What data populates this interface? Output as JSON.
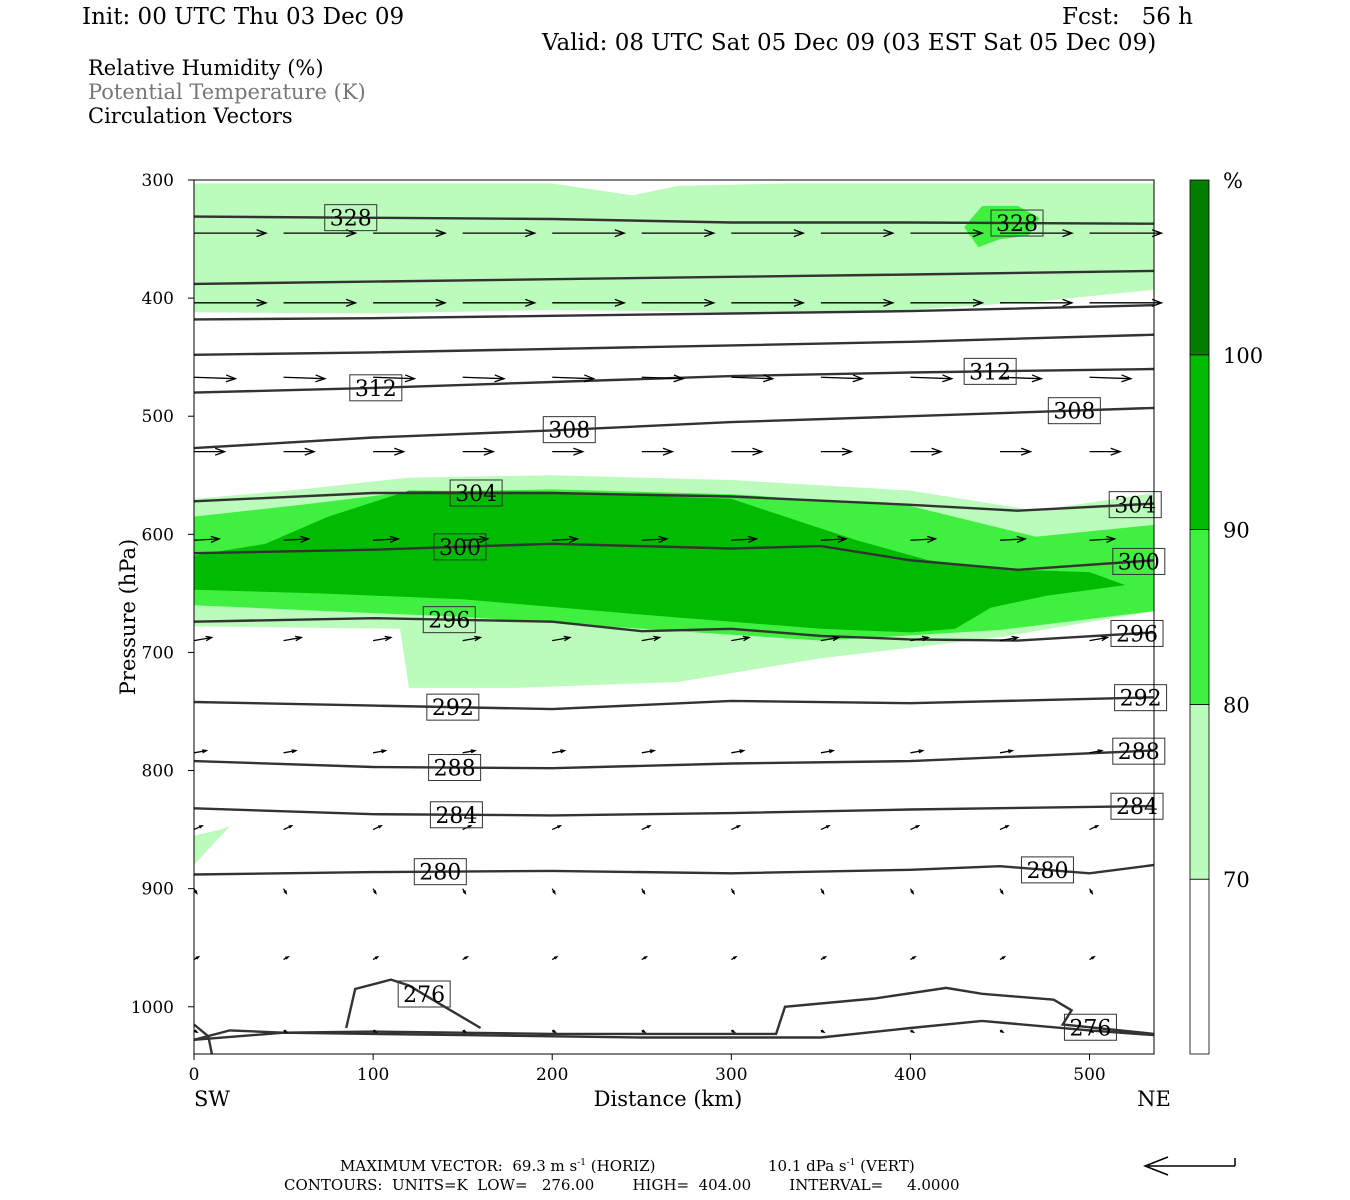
{
  "header": {
    "init": "Init: 00 UTC Thu 03 Dec 09",
    "fcst": "Fcst:   56 h",
    "valid": "Valid: 08 UTC Sat 05 Dec 09 (03 EST Sat 05 Dec 09)"
  },
  "legend": {
    "rh": "Relative Humidity (%)",
    "theta": "Potential Temperature (K)",
    "vectors": "Circulation Vectors"
  },
  "footer": {
    "max_vector": "MAXIMUM VECTOR:  69.3 m s",
    "max_vector_unit_sup": "-1",
    "max_vector_horiz": " (HORIZ)",
    "vert_value": "10.1 dPa s",
    "vert_sup": "-1",
    "vert_label": " (VERT)",
    "contours": "CONTOURS:  UNITS=K  LOW=   276.00        HIGH=  404.00        INTERVAL=     4.0000"
  },
  "colors": {
    "rh70": "#bbfbbb",
    "rh80": "#40f040",
    "rh90": "#00bb00",
    "rh100": "#007f00",
    "contour": "#333333"
  },
  "chart_data": {
    "type": "cross-section",
    "xlabel": "Distance (km)",
    "ylabel": "Pressure (hPa)",
    "x_left_label": "SW",
    "x_right_label": "NE",
    "xlim": [
      0,
      536
    ],
    "ylim": [
      1040,
      300
    ],
    "xticks": [
      0,
      100,
      200,
      300,
      400,
      500
    ],
    "yticks": [
      300,
      400,
      500,
      600,
      700,
      800,
      900,
      1000
    ],
    "colorbar": {
      "unit": "%",
      "levels": [
        70,
        80,
        90,
        100
      ],
      "colors": [
        "#ffffff",
        "#bbfbbb",
        "#40f040",
        "#00bb00",
        "#007f00"
      ]
    },
    "rh_fill": [
      {
        "level": 70,
        "pts": [
          [
            0,
            303
          ],
          [
            120,
            303
          ],
          [
            200,
            303
          ],
          [
            245,
            313
          ],
          [
            270,
            305
          ],
          [
            330,
            303
          ],
          [
            400,
            303
          ],
          [
            450,
            303
          ],
          [
            536,
            303
          ],
          [
            536,
            393
          ],
          [
            470,
            403
          ],
          [
            400,
            410
          ],
          [
            300,
            412
          ],
          [
            200,
            410
          ],
          [
            100,
            413
          ],
          [
            0,
            412
          ]
        ]
      },
      {
        "level": 80,
        "pts": [
          [
            430,
            340
          ],
          [
            440,
            322
          ],
          [
            460,
            322
          ],
          [
            472,
            332
          ],
          [
            466,
            347
          ],
          [
            450,
            350
          ],
          [
            438,
            357
          ]
        ]
      },
      {
        "level": 70,
        "pts": [
          [
            0,
            570
          ],
          [
            60,
            562
          ],
          [
            120,
            552
          ],
          [
            200,
            550
          ],
          [
            300,
            554
          ],
          [
            400,
            563
          ],
          [
            470,
            580
          ],
          [
            536,
            565
          ],
          [
            536,
            665
          ],
          [
            450,
            687
          ],
          [
            350,
            705
          ],
          [
            270,
            725
          ],
          [
            180,
            730
          ],
          [
            120,
            730
          ],
          [
            115,
            680
          ],
          [
            0,
            678
          ]
        ]
      },
      {
        "level": 80,
        "pts": [
          [
            0,
            585
          ],
          [
            60,
            575
          ],
          [
            120,
            564
          ],
          [
            200,
            562
          ],
          [
            300,
            566
          ],
          [
            400,
            576
          ],
          [
            470,
            602
          ],
          [
            536,
            592
          ],
          [
            536,
            665
          ],
          [
            450,
            681
          ],
          [
            350,
            690
          ],
          [
            250,
            680
          ],
          [
            150,
            670
          ],
          [
            0,
            660
          ]
        ]
      },
      {
        "level": 90,
        "pts": [
          [
            0,
            618
          ],
          [
            40,
            608
          ],
          [
            75,
            585
          ],
          [
            120,
            563
          ],
          [
            200,
            564
          ],
          [
            300,
            570
          ],
          [
            330,
            585
          ],
          [
            370,
            605
          ],
          [
            410,
            622
          ],
          [
            460,
            630
          ],
          [
            500,
            632
          ],
          [
            520,
            643
          ],
          [
            476,
            652
          ],
          [
            445,
            662
          ],
          [
            425,
            680
          ],
          [
            400,
            683
          ],
          [
            350,
            680
          ],
          [
            250,
            668
          ],
          [
            150,
            655
          ],
          [
            70,
            650
          ],
          [
            0,
            647
          ]
        ]
      },
      {
        "level": 70,
        "pts": [
          [
            0,
            855
          ],
          [
            15,
            850
          ],
          [
            20,
            847
          ],
          [
            0,
            880
          ]
        ]
      }
    ],
    "theta_contours": [
      {
        "level": 328,
        "label_x": 73,
        "pts": [
          [
            0,
            331
          ],
          [
            100,
            332
          ],
          [
            200,
            333
          ],
          [
            300,
            336
          ],
          [
            400,
            336
          ],
          [
            536,
            337
          ]
        ]
      },
      {
        "level": 328,
        "label_x": 445,
        "pts": []
      },
      {
        "pts": [
          [
            0,
            388
          ],
          [
            100,
            386
          ],
          [
            200,
            384
          ],
          [
            300,
            382
          ],
          [
            400,
            380
          ],
          [
            536,
            377
          ]
        ]
      },
      {
        "pts": [
          [
            0,
            418
          ],
          [
            100,
            417
          ],
          [
            200,
            415
          ],
          [
            300,
            413
          ],
          [
            400,
            411
          ],
          [
            536,
            406
          ]
        ]
      },
      {
        "pts": [
          [
            0,
            448
          ],
          [
            100,
            446
          ],
          [
            200,
            443
          ],
          [
            300,
            440
          ],
          [
            400,
            437
          ],
          [
            536,
            431
          ]
        ]
      },
      {
        "level": 312,
        "label_x": 87,
        "pts": [
          [
            0,
            480
          ],
          [
            100,
            476
          ],
          [
            200,
            471
          ],
          [
            300,
            466
          ],
          [
            400,
            463
          ],
          [
            536,
            460
          ]
        ]
      },
      {
        "level": 312,
        "label_x": 430,
        "pts": []
      },
      {
        "level": 308,
        "label_x": 195,
        "pts": [
          [
            0,
            527
          ],
          [
            100,
            518
          ],
          [
            200,
            512
          ],
          [
            300,
            505
          ],
          [
            400,
            500
          ],
          [
            536,
            493
          ]
        ]
      },
      {
        "level": 308,
        "label_x": 477,
        "pts": []
      },
      {
        "level": 304,
        "label_x": 143,
        "pts": [
          [
            0,
            572
          ],
          [
            100,
            565
          ],
          [
            200,
            565
          ],
          [
            300,
            568
          ],
          [
            400,
            575
          ],
          [
            460,
            580
          ],
          [
            536,
            574
          ]
        ]
      },
      {
        "level": 304,
        "label_x": 511,
        "pts": []
      },
      {
        "level": 300,
        "label_x": 134,
        "pts": [
          [
            0,
            616
          ],
          [
            100,
            613
          ],
          [
            200,
            608
          ],
          [
            300,
            612
          ],
          [
            350,
            610
          ],
          [
            400,
            622
          ],
          [
            460,
            630
          ],
          [
            536,
            622
          ]
        ]
      },
      {
        "level": 300,
        "label_x": 513,
        "pts": []
      },
      {
        "level": 296,
        "label_x": 128,
        "pts": [
          [
            0,
            674
          ],
          [
            100,
            671
          ],
          [
            200,
            674
          ],
          [
            250,
            682
          ],
          [
            300,
            680
          ],
          [
            350,
            686
          ],
          [
            400,
            689
          ],
          [
            460,
            690
          ],
          [
            536,
            683
          ]
        ]
      },
      {
        "level": 296,
        "label_x": 512,
        "pts": []
      },
      {
        "level": 292,
        "label_x": 130,
        "pts": [
          [
            0,
            742
          ],
          [
            100,
            745
          ],
          [
            200,
            748
          ],
          [
            300,
            741
          ],
          [
            400,
            743
          ],
          [
            536,
            738
          ]
        ]
      },
      {
        "level": 292,
        "label_x": 514,
        "pts": []
      },
      {
        "level": 288,
        "label_x": 131,
        "pts": [
          [
            0,
            792
          ],
          [
            100,
            797
          ],
          [
            200,
            798
          ],
          [
            300,
            794
          ],
          [
            400,
            792
          ],
          [
            536,
            783
          ]
        ]
      },
      {
        "level": 288,
        "label_x": 513,
        "pts": []
      },
      {
        "level": 284,
        "label_x": 132,
        "pts": [
          [
            0,
            832
          ],
          [
            100,
            837
          ],
          [
            200,
            838
          ],
          [
            300,
            836
          ],
          [
            400,
            833
          ],
          [
            536,
            830
          ]
        ]
      },
      {
        "level": 284,
        "label_x": 512,
        "pts": []
      },
      {
        "level": 280,
        "label_x": 123,
        "pts": [
          [
            0,
            888
          ],
          [
            100,
            886
          ],
          [
            200,
            885
          ],
          [
            300,
            887
          ],
          [
            400,
            884
          ],
          [
            450,
            881
          ],
          [
            500,
            887
          ],
          [
            536,
            880
          ]
        ]
      },
      {
        "level": 280,
        "label_x": 462,
        "pts": []
      },
      {
        "level": 276,
        "label_x": 114,
        "pts": [
          [
            85,
            1018
          ],
          [
            90,
            985
          ],
          [
            110,
            977
          ],
          [
            120,
            982
          ],
          [
            140,
            1000
          ],
          [
            160,
            1018
          ]
        ]
      },
      {
        "level": 276,
        "label_x": 486,
        "pts": [
          [
            0,
            1028
          ],
          [
            20,
            1020
          ],
          [
            50,
            1022
          ],
          [
            100,
            1021
          ],
          [
            200,
            1023
          ],
          [
            325,
            1023
          ],
          [
            330,
            1000
          ],
          [
            380,
            993
          ],
          [
            420,
            984
          ],
          [
            440,
            989
          ],
          [
            480,
            994
          ],
          [
            490,
            1003
          ],
          [
            485,
            1015
          ],
          [
            536,
            1023
          ]
        ]
      },
      {
        "pts": [
          [
            0,
            1028
          ],
          [
            50,
            1022
          ],
          [
            150,
            1024
          ],
          [
            250,
            1026
          ],
          [
            350,
            1026
          ],
          [
            400,
            1018
          ],
          [
            440,
            1012
          ],
          [
            500,
            1020
          ],
          [
            536,
            1024
          ]
        ]
      },
      {
        "pts": [
          [
            0,
            1015
          ],
          [
            8,
            1025
          ],
          [
            10,
            1040
          ]
        ]
      }
    ],
    "vectors": [
      {
        "p": 345,
        "len": 40,
        "ang": 0
      },
      {
        "p": 404,
        "len": 40,
        "ang": 0
      },
      {
        "p": 467,
        "len": 23,
        "ang": 2
      },
      {
        "p": 530,
        "len": 17,
        "ang": 0
      },
      {
        "p": 605,
        "len": 14,
        "ang": -3
      },
      {
        "p": 690,
        "len": 10,
        "ang": -10
      },
      {
        "p": 785,
        "len": 7,
        "ang": -10
      },
      {
        "p": 850,
        "len": 5,
        "ang": -25
      },
      {
        "p": 900,
        "len": 3,
        "ang": 60
      },
      {
        "p": 960,
        "len": 3,
        "ang": -30
      },
      {
        "p": 1020,
        "len": 2,
        "ang": 30
      }
    ],
    "vector_x": [
      0,
      50,
      100,
      150,
      200,
      250,
      300,
      350,
      400,
      450,
      500
    ]
  }
}
